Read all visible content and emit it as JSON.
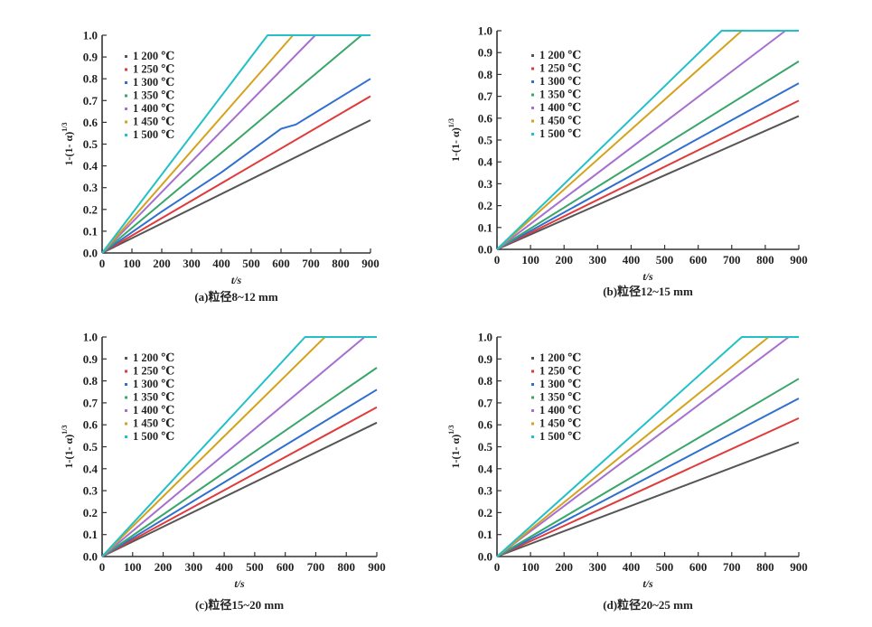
{
  "chart_data": [
    {
      "type": "line",
      "caption": "(a)粒径8~12 mm",
      "xlabel": "t/s",
      "ylabel": "1-(1-α)^1/3",
      "xlim": [
        0,
        900
      ],
      "ylim": [
        0,
        1.0
      ],
      "xticks": [
        "0",
        "100",
        "200",
        "300",
        "400",
        "500",
        "600",
        "700",
        "800",
        "900"
      ],
      "yticks": [
        "0.0",
        "0.1",
        "0.2",
        "0.3",
        "0.4",
        "0.5",
        "0.6",
        "0.7",
        "0.8",
        "0.9",
        "1.0"
      ],
      "grid": false,
      "legend_position": "top-left",
      "series": [
        {
          "name": "1 200 ℃",
          "color": "#555555",
          "points": [
            [
              0,
              0
            ],
            [
              900,
              0.61
            ]
          ]
        },
        {
          "name": "1 250 ℃",
          "color": "#e03a3a",
          "points": [
            [
              0,
              0
            ],
            [
              900,
              0.72
            ]
          ]
        },
        {
          "name": "1 300 ℃",
          "color": "#2f6fd0",
          "points": [
            [
              0,
              0
            ],
            [
              200,
              0.19
            ],
            [
              400,
              0.37
            ],
            [
              600,
              0.57
            ],
            [
              650,
              0.59
            ],
            [
              900,
              0.8
            ]
          ]
        },
        {
          "name": "1 350 ℃",
          "color": "#3aa66a",
          "points": [
            [
              0,
              0
            ],
            [
              870,
              1.0
            ],
            [
              900,
              1.0
            ]
          ]
        },
        {
          "name": "1 400 ℃",
          "color": "#a66fd0",
          "points": [
            [
              0,
              0
            ],
            [
              715,
              1.0
            ],
            [
              900,
              1.0
            ]
          ]
        },
        {
          "name": "1 450 ℃",
          "color": "#d4a21c",
          "points": [
            [
              0,
              0
            ],
            [
              640,
              1.0
            ],
            [
              900,
              1.0
            ]
          ]
        },
        {
          "name": "1 500 ℃",
          "color": "#22c0c8",
          "points": [
            [
              0,
              0
            ],
            [
              555,
              1.0
            ],
            [
              900,
              1.0
            ]
          ]
        }
      ]
    },
    {
      "type": "line",
      "caption": "(b)粒径12~15 mm",
      "xlabel": "t/s",
      "ylabel": "1-(1-α)^1/3",
      "xlim": [
        0,
        900
      ],
      "ylim": [
        0,
        1.0
      ],
      "xticks": [
        "0",
        "100",
        "200",
        "300",
        "400",
        "500",
        "600",
        "700",
        "800",
        "900"
      ],
      "yticks": [
        "0.0",
        "0.1",
        "0.2",
        "0.3",
        "0.4",
        "0.5",
        "0.6",
        "0.7",
        "0.8",
        "0.9",
        "1.0"
      ],
      "grid": false,
      "legend_position": "top-left",
      "series": [
        {
          "name": "1 200 ℃",
          "color": "#555555",
          "points": [
            [
              0,
              0
            ],
            [
              900,
              0.61
            ]
          ]
        },
        {
          "name": "1 250 ℃",
          "color": "#e03a3a",
          "points": [
            [
              0,
              0
            ],
            [
              900,
              0.68
            ]
          ]
        },
        {
          "name": "1 300 ℃",
          "color": "#2f6fd0",
          "points": [
            [
              0,
              0
            ],
            [
              900,
              0.76
            ]
          ]
        },
        {
          "name": "1 350 ℃",
          "color": "#3aa66a",
          "points": [
            [
              0,
              0
            ],
            [
              900,
              0.86
            ]
          ]
        },
        {
          "name": "1 400 ℃",
          "color": "#a66fd0",
          "points": [
            [
              0,
              0
            ],
            [
              860,
              1.0
            ],
            [
              900,
              1.0
            ]
          ]
        },
        {
          "name": "1 450 ℃",
          "color": "#d4a21c",
          "points": [
            [
              0,
              0
            ],
            [
              730,
              1.0
            ],
            [
              900,
              1.0
            ]
          ]
        },
        {
          "name": "1 500 ℃",
          "color": "#22c0c8",
          "points": [
            [
              0,
              0
            ],
            [
              670,
              1.0
            ],
            [
              900,
              1.0
            ]
          ]
        }
      ]
    },
    {
      "type": "line",
      "caption": "(c)粒径15~20 mm",
      "xlabel": "t/s",
      "ylabel": "1-(1-α)^1/3",
      "xlim": [
        0,
        900
      ],
      "ylim": [
        0,
        1.0
      ],
      "xticks": [
        "0",
        "100",
        "200",
        "300",
        "400",
        "500",
        "600",
        "700",
        "800",
        "900"
      ],
      "yticks": [
        "0.0",
        "0.1",
        "0.2",
        "0.3",
        "0.4",
        "0.5",
        "0.6",
        "0.7",
        "0.8",
        "0.9",
        "1.0"
      ],
      "grid": false,
      "legend_position": "top-left",
      "series": [
        {
          "name": "1 200 ℃",
          "color": "#555555",
          "points": [
            [
              0,
              0
            ],
            [
              900,
              0.61
            ]
          ]
        },
        {
          "name": "1 250 ℃",
          "color": "#e03a3a",
          "points": [
            [
              0,
              0
            ],
            [
              900,
              0.68
            ]
          ]
        },
        {
          "name": "1 300 ℃",
          "color": "#2f6fd0",
          "points": [
            [
              0,
              0
            ],
            [
              900,
              0.76
            ]
          ]
        },
        {
          "name": "1 350 ℃",
          "color": "#3aa66a",
          "points": [
            [
              0,
              0
            ],
            [
              900,
              0.86
            ]
          ]
        },
        {
          "name": "1 400 ℃",
          "color": "#a66fd0",
          "points": [
            [
              0,
              0
            ],
            [
              860,
              1.0
            ],
            [
              900,
              1.0
            ]
          ]
        },
        {
          "name": "1 450 ℃",
          "color": "#d4a21c",
          "points": [
            [
              0,
              0
            ],
            [
              730,
              1.0
            ],
            [
              900,
              1.0
            ]
          ]
        },
        {
          "name": "1 500 ℃",
          "color": "#22c0c8",
          "points": [
            [
              0,
              0
            ],
            [
              665,
              1.0
            ],
            [
              900,
              1.0
            ]
          ]
        }
      ]
    },
    {
      "type": "line",
      "caption": "(d)粒径20~25 mm",
      "xlabel": "t/s",
      "ylabel": "1-(1-α)^1/3",
      "xlim": [
        0,
        900
      ],
      "ylim": [
        0,
        1.0
      ],
      "xticks": [
        "0",
        "100",
        "200",
        "300",
        "400",
        "500",
        "600",
        "700",
        "800",
        "900"
      ],
      "yticks": [
        "0.0",
        "0.1",
        "0.2",
        "0.3",
        "0.4",
        "0.5",
        "0.6",
        "0.7",
        "0.8",
        "0.9",
        "1.0"
      ],
      "grid": false,
      "legend_position": "top-left",
      "series": [
        {
          "name": "1 200 ℃",
          "color": "#555555",
          "points": [
            [
              0,
              0
            ],
            [
              900,
              0.52
            ]
          ]
        },
        {
          "name": "1 250 ℃",
          "color": "#e03a3a",
          "points": [
            [
              0,
              0
            ],
            [
              900,
              0.63
            ]
          ]
        },
        {
          "name": "1 300 ℃",
          "color": "#2f6fd0",
          "points": [
            [
              0,
              0
            ],
            [
              900,
              0.72
            ]
          ]
        },
        {
          "name": "1 350 ℃",
          "color": "#3aa66a",
          "points": [
            [
              0,
              0
            ],
            [
              900,
              0.81
            ]
          ]
        },
        {
          "name": "1 400 ℃",
          "color": "#a66fd0",
          "points": [
            [
              0,
              0
            ],
            [
              870,
              1.0
            ],
            [
              900,
              1.0
            ]
          ]
        },
        {
          "name": "1 450 ℃",
          "color": "#d4a21c",
          "points": [
            [
              0,
              0
            ],
            [
              810,
              1.0
            ],
            [
              900,
              1.0
            ]
          ]
        },
        {
          "name": "1 500 ℃",
          "color": "#22c0c8",
          "points": [
            [
              0,
              0
            ],
            [
              730,
              1.0
            ],
            [
              900,
              1.0
            ]
          ]
        }
      ]
    }
  ]
}
